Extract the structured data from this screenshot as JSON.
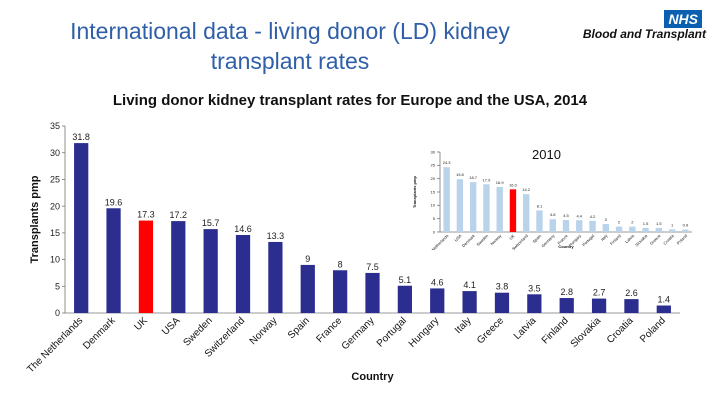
{
  "slide": {
    "title": "International data - living donor (LD) kidney transplant rates",
    "brand_logo": "NHS",
    "brand_text": "Blood and Transplant"
  },
  "chart_data": [
    {
      "type": "bar",
      "title": "Living donor kidney transplant rates for Europe and the USA, 2014",
      "xlabel": "Country",
      "ylabel": "Transplants pmp",
      "ylim": [
        0,
        35
      ],
      "yticks": [
        0,
        5,
        10,
        15,
        20,
        25,
        30,
        35
      ],
      "categories": [
        "The Netherlands",
        "Denmark",
        "UK",
        "USA",
        "Sweden",
        "Switzerland",
        "Norway",
        "Spain",
        "France",
        "Germany",
        "Portugal",
        "Hungary",
        "Italy",
        "Greece",
        "Latvia",
        "Finland",
        "Slovakia",
        "Croatia",
        "Poland"
      ],
      "values": [
        31.8,
        19.6,
        17.3,
        17.2,
        15.7,
        14.6,
        13.3,
        9,
        8,
        7.5,
        5.1,
        4.6,
        4.1,
        3.8,
        3.5,
        2.8,
        2.7,
        2.6,
        1.4
      ],
      "value_labels": [
        "31.8",
        "19.6",
        "17.3",
        "17.2",
        "15.7",
        "14.6",
        "13.3",
        "9",
        "8",
        "7.5",
        "5.1",
        "4.6",
        "4.1",
        "3.8",
        "3.5",
        "2.8",
        "2.7",
        "2.6",
        "1.4"
      ],
      "highlight": "UK",
      "colors": {
        "bar": "#2b2e8f",
        "highlight": "#ff0000"
      }
    },
    {
      "type": "bar",
      "title": "2010",
      "xlabel": "Country",
      "ylabel": "Transplants pmp",
      "ylim": [
        0,
        30
      ],
      "yticks": [
        0,
        5,
        10,
        15,
        20,
        25,
        30
      ],
      "categories": [
        "The Netherlands",
        "USA",
        "Denmark",
        "Sweden",
        "Norway",
        "UK",
        "Switzerland",
        "Spain",
        "Germany",
        "France",
        "Hungary",
        "Portugal",
        "Italy",
        "Finland",
        "Latvia",
        "Slovakia",
        "Greece",
        "Croatia",
        "Poland"
      ],
      "values": [
        24.3,
        19.8,
        18.7,
        17.9,
        16.9,
        16.0,
        14.2,
        8.1,
        4.8,
        4.5,
        4.4,
        4.2,
        3.0,
        2.0,
        2.0,
        1.5,
        1.5,
        1.0,
        0.9
      ],
      "value_labels": [
        "24.3",
        "19.8",
        "18.7",
        "17.9",
        "16.9",
        "16.0",
        "14.2",
        "8.1",
        "4.8",
        "4.5",
        "4.4",
        "4.2",
        "3",
        "2",
        "2",
        "1.5",
        "1.5",
        "1",
        "0.9"
      ],
      "highlight": "UK",
      "colors": {
        "bar": "#b9d3ea",
        "highlight": "#ff0000"
      }
    }
  ]
}
